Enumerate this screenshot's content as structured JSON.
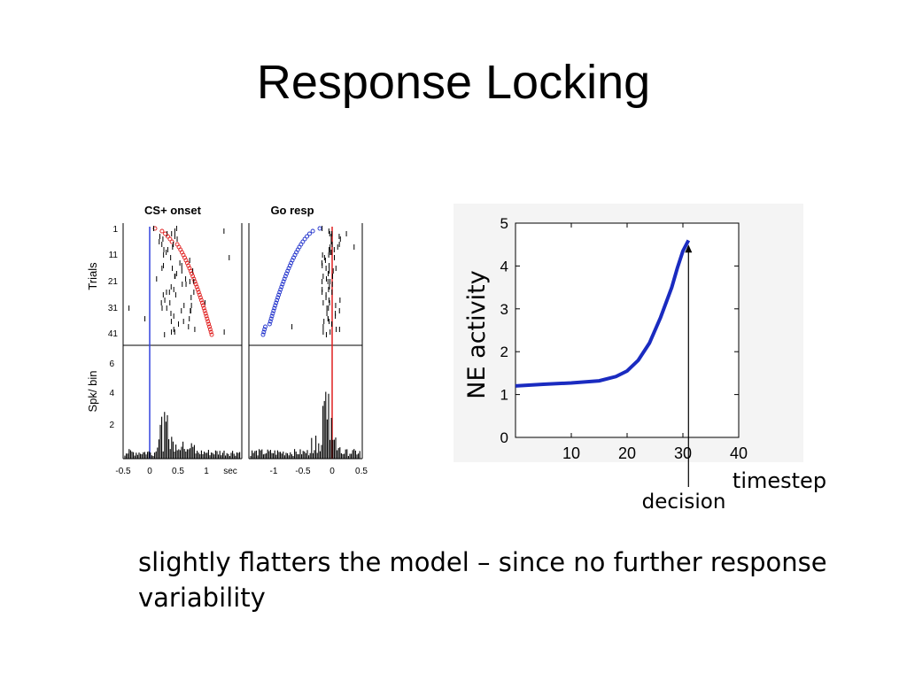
{
  "slide": {
    "title": "Response Locking",
    "caption": "slightly flatters the model – since no further response variability"
  },
  "raster_figure": {
    "panel_titles": [
      "CS+ onset",
      "Go resp"
    ],
    "trials_label": "Trials",
    "trials_ticks": [
      "1",
      "11",
      "21",
      "31",
      "41"
    ],
    "hist_label": "Spk/ bin",
    "hist_ticks": [
      "6",
      "4",
      "2"
    ],
    "left_x_ticks": [
      "-0.5",
      "0",
      "0.5",
      "1"
    ],
    "unit": "sec",
    "right_x_ticks": [
      "-1",
      "-0.5",
      "0",
      "0.5"
    ],
    "colors": {
      "onset_line": "#3344dd",
      "resp_line": "#e02020",
      "left_markers": "#e02020",
      "right_markers": "#2233cc"
    }
  },
  "chart_data": {
    "type": "line",
    "xlabel": "timestep",
    "ylabel": "NE activity",
    "xlim": [
      0,
      40
    ],
    "ylim": [
      0,
      5
    ],
    "xticks": [
      "10",
      "20",
      "30",
      "40"
    ],
    "yticks": [
      "0",
      "1",
      "2",
      "3",
      "4",
      "5"
    ],
    "annotation": "decision",
    "annotation_x": 31,
    "line_color": "#1a2bc0",
    "series": [
      {
        "x": [
          0,
          5,
          10,
          15,
          18,
          20,
          22,
          24,
          26,
          28,
          29,
          30,
          31
        ],
        "y": [
          1.2,
          1.24,
          1.27,
          1.32,
          1.42,
          1.55,
          1.8,
          2.2,
          2.8,
          3.5,
          3.95,
          4.35,
          4.6
        ]
      }
    ]
  }
}
